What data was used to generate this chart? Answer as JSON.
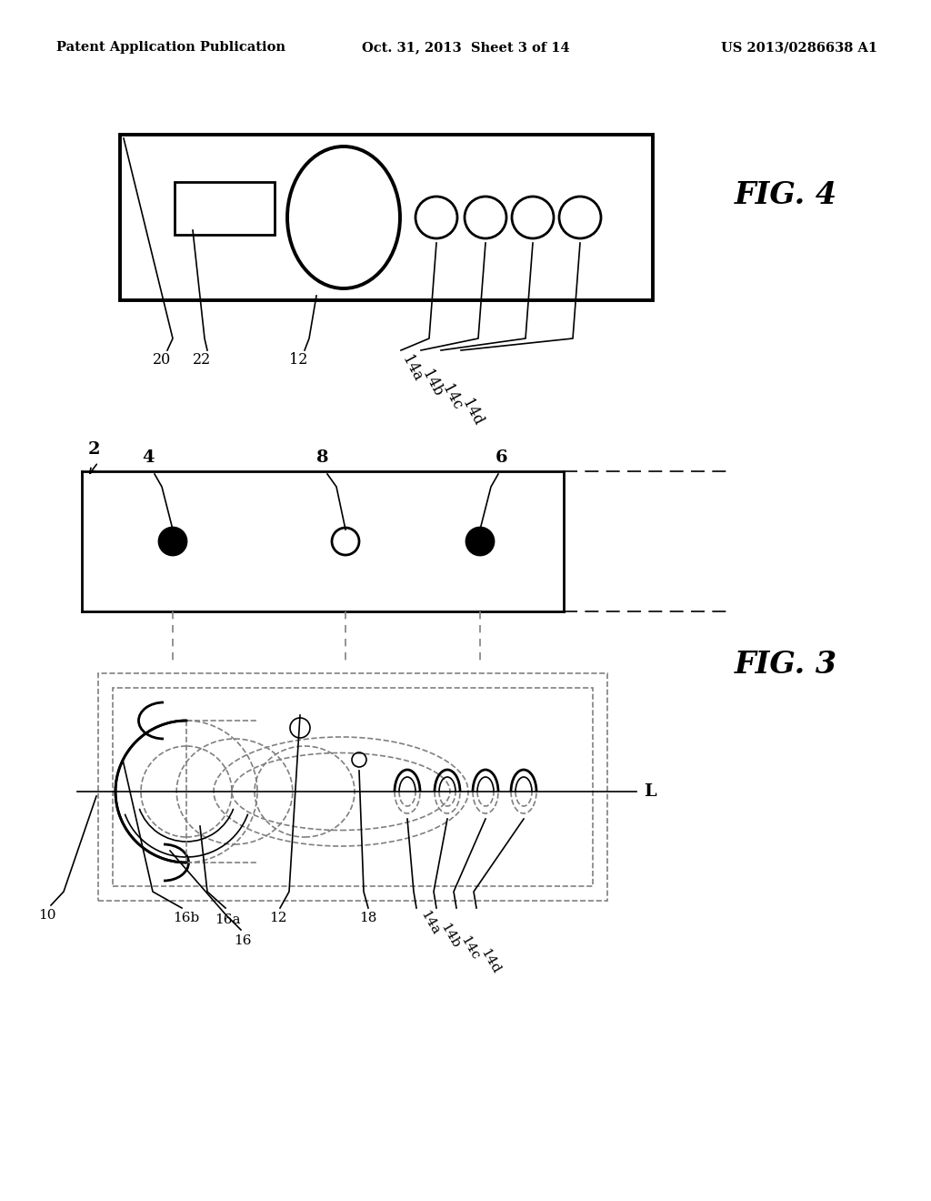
{
  "bg_color": "#ffffff",
  "header_left": "Patent Application Publication",
  "header_center": "Oct. 31, 2013  Sheet 3 of 14",
  "header_right": "US 2013/0286638 A1",
  "fig4_label": "FIG. 4",
  "fig3_label": "FIG. 3",
  "black": "#000000",
  "gray": "#aaaaaa"
}
